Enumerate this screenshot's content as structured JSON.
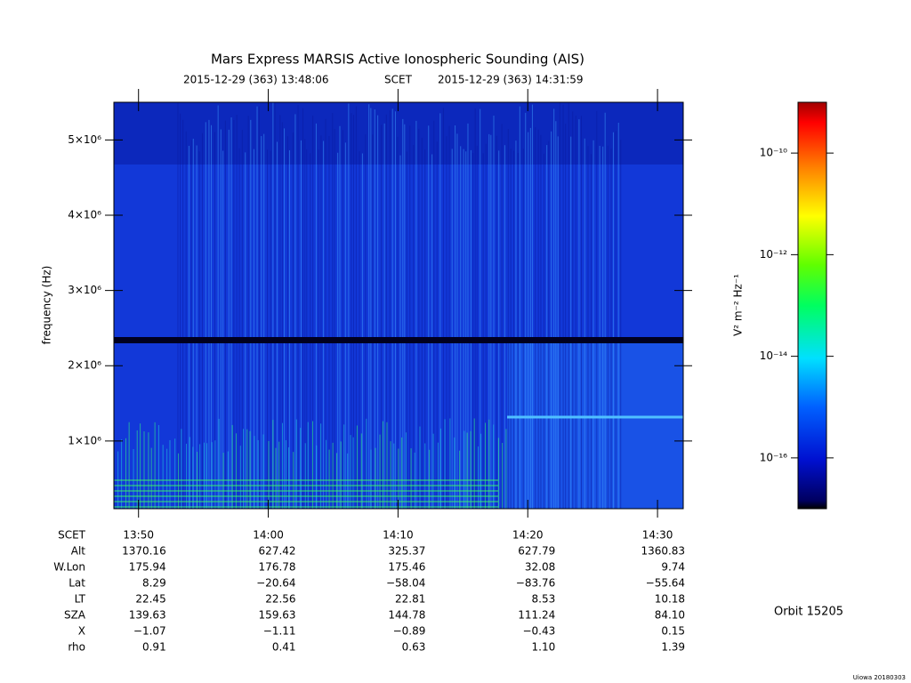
{
  "chart_data": {
    "type": "spectrogram",
    "title": "Mars Express MARSIS Active Ionospheric Sounding (AIS)",
    "subtitle": {
      "start": "2015-12-29 (363) 13:48:06",
      "scet": "SCET",
      "end": "2015-12-29 (363) 14:31:59"
    },
    "ylabel": "frequency (Hz)",
    "ylim": [
      100000,
      5500000
    ],
    "yticks": [
      {
        "value": 1000000,
        "label": "1×10⁶"
      },
      {
        "value": 2000000,
        "label": "2×10⁶"
      },
      {
        "value": 3000000,
        "label": "3×10⁶"
      },
      {
        "value": 4000000,
        "label": "4×10⁶"
      },
      {
        "value": 5000000,
        "label": "5×10⁶"
      }
    ],
    "colorbar": {
      "label": "V² m⁻² Hz⁻¹",
      "scale": "log",
      "lim": [
        1e-17,
        1e-09
      ],
      "ticks": [
        {
          "value": 1e-16,
          "label": "10⁻¹⁶"
        },
        {
          "value": 1e-14,
          "label": "10⁻¹⁴"
        },
        {
          "value": 1e-12,
          "label": "10⁻¹²"
        },
        {
          "value": 1e-10,
          "label": "10⁻¹⁰"
        }
      ]
    }
  },
  "ephemeris": {
    "rows": [
      {
        "label": "SCET",
        "values": [
          "13:50",
          "14:00",
          "14:10",
          "14:20",
          "14:30"
        ]
      },
      {
        "label": "Alt",
        "values": [
          "1370.16",
          "627.42",
          "325.37",
          "627.79",
          "1360.83"
        ]
      },
      {
        "label": "W.Lon",
        "values": [
          "175.94",
          "176.78",
          "175.46",
          "32.08",
          "9.74"
        ]
      },
      {
        "label": "Lat",
        "values": [
          "8.29",
          "−20.64",
          "−58.04",
          "−83.76",
          "−55.64"
        ]
      },
      {
        "label": "LT",
        "values": [
          "22.45",
          "22.56",
          "22.81",
          "8.53",
          "10.18"
        ]
      },
      {
        "label": "SZA",
        "values": [
          "139.63",
          "159.63",
          "144.78",
          "111.24",
          "84.10"
        ]
      },
      {
        "label": "X",
        "values": [
          "−1.07",
          "−1.11",
          "−0.89",
          "−0.43",
          "0.15"
        ]
      },
      {
        "label": "rho",
        "values": [
          "0.91",
          "0.41",
          "0.63",
          "1.10",
          "1.39"
        ]
      }
    ]
  },
  "orbit": "Orbit 15205",
  "footer": "Uiowa 20180303"
}
